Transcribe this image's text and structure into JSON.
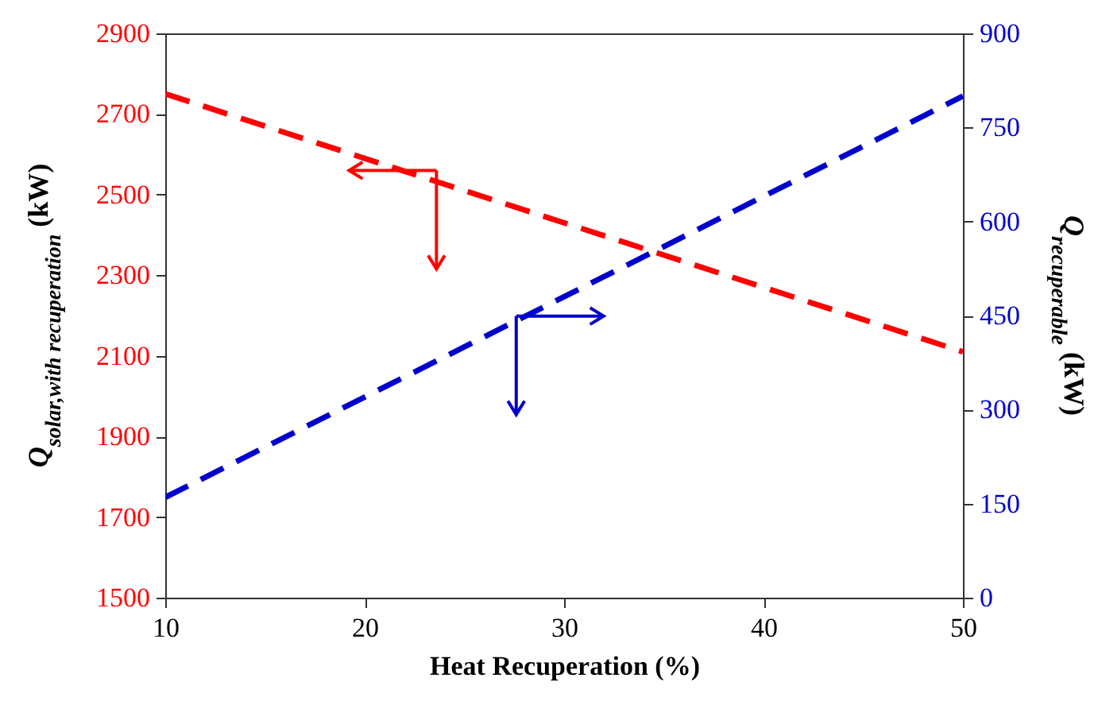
{
  "chart_data": {
    "type": "line",
    "xlabel": "Heat Recuperation (%)",
    "ylabel": "Q$_{solar,with recuperation}$ (kW)",
    "y2label": "Q$_{recuperable}$ (kW)",
    "x": [
      10,
      50
    ],
    "series": [
      {
        "color": "#ff0000",
        "values": [
          2750,
          2110
        ],
        "line_style": "dashed"
      },
      {
        "color": "#0000cc",
        "values": [
          160,
          800
        ],
        "axis": "y2",
        "line_style": "dashed"
      }
    ],
    "xlim": [
      10,
      50
    ],
    "xticks": [
      10,
      20,
      30,
      40,
      50
    ],
    "ylim": [
      1500,
      2900
    ],
    "yticks": [
      1500,
      1700,
      1900,
      2100,
      2300,
      2500,
      2700,
      2900
    ],
    "y2lim": [
      0,
      900
    ],
    "y2ticks": [
      0,
      150,
      300,
      450,
      600,
      750,
      900
    ],
    "grid": false,
    "marker": "none"
  }
}
